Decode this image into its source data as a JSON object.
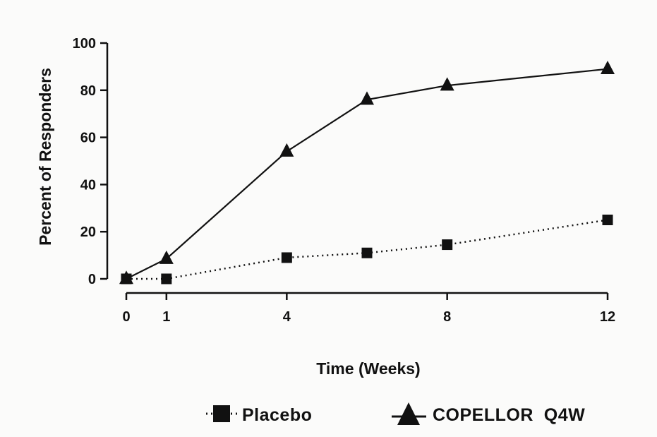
{
  "chart_data": {
    "type": "line",
    "title": "",
    "xlabel": "Time (Weeks)",
    "ylabel": "Percent of Responders",
    "xlim": [
      0,
      12
    ],
    "ylim": [
      0,
      100
    ],
    "x_ticks": [
      0,
      1,
      4,
      8,
      12
    ],
    "y_ticks": [
      0,
      20,
      40,
      60,
      80,
      100
    ],
    "grid": false,
    "legend_position": "bottom",
    "series": [
      {
        "name": "Placebo",
        "marker": "square",
        "line_style": "dotted",
        "color": "#111111",
        "x": [
          0,
          1,
          4,
          6,
          8,
          12
        ],
        "y": [
          0,
          0,
          9,
          11,
          14.5,
          25
        ]
      },
      {
        "name": "COPELLOR  Q4W",
        "marker": "triangle",
        "line_style": "solid",
        "color": "#111111",
        "x": [
          0,
          1,
          4,
          6,
          8,
          12
        ],
        "y": [
          0,
          8.5,
          54,
          76,
          82,
          89
        ]
      }
    ]
  }
}
